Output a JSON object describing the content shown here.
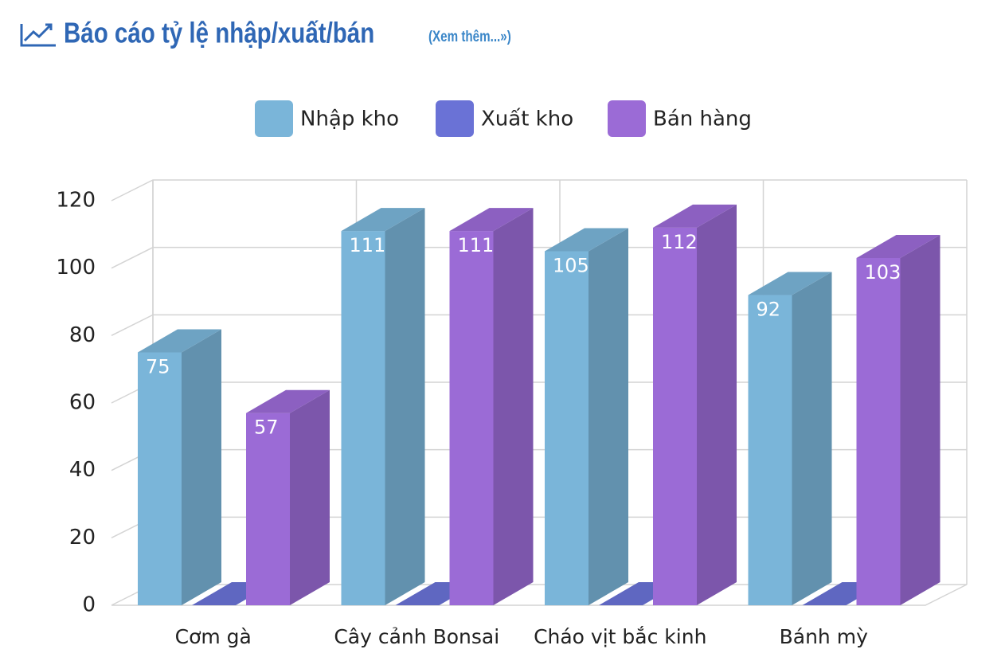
{
  "header": {
    "title": "Báo cáo tỷ lệ nhập/xuất/bán",
    "link": "(Xem thêm...»)"
  },
  "chart_data": {
    "type": "bar3d",
    "categories": [
      "Cơm gà",
      "Cây cảnh Bonsai",
      "Cháo vịt bắc kinh",
      "Bánh mỳ"
    ],
    "series": [
      {
        "name": "Nhập kho",
        "color": "#7ab5d9",
        "values": [
          75,
          111,
          105,
          92
        ]
      },
      {
        "name": "Xuất kho",
        "color": "#6a72d6",
        "values": [
          0,
          0,
          0,
          0
        ]
      },
      {
        "name": "Bán hàng",
        "color": "#9b6bd6",
        "values": [
          57,
          111,
          112,
          103
        ]
      }
    ],
    "ylim": [
      0,
      120
    ],
    "yticks": [
      0,
      20,
      40,
      60,
      80,
      100,
      120
    ],
    "grid": true,
    "legend": "top"
  }
}
